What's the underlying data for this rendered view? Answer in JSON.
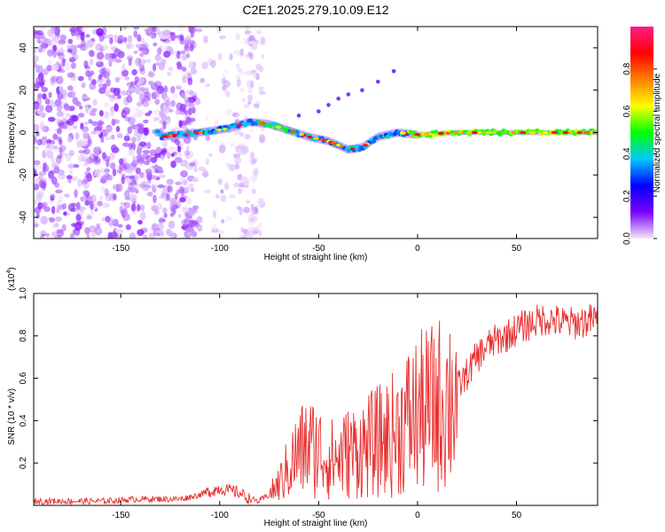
{
  "chart_data": [
    {
      "type": "heatmap",
      "title": "C2E1.2025.279.10.09.E12",
      "xlabel": "Height of straight line (km)",
      "ylabel": "Frequency (Hz)",
      "xlim": [
        -194,
        91
      ],
      "ylim": [
        -50,
        50
      ],
      "xticks": [
        -150,
        -100,
        -50,
        0,
        50
      ],
      "xtick_labels": [
        "-150",
        "-100",
        "-50",
        "0",
        "50"
      ],
      "yticks": [
        -40,
        -20,
        0,
        20,
        40
      ],
      "ytick_labels": [
        "-40",
        "-20",
        "0",
        "20",
        "40"
      ],
      "colorbar": {
        "label": "Normalized spectral amplitude",
        "range": [
          0,
          1
        ],
        "ticks": [
          0.0,
          0.2,
          0.4,
          0.6,
          0.8
        ],
        "tick_labels": [
          "0.0",
          "0.2",
          "0.4",
          "0.6",
          "0.8"
        ],
        "colors": [
          "#f2e6fb",
          "#7a00ff",
          "#0000ff",
          "#00c8ff",
          "#00ff00",
          "#ffff00",
          "#ff8000",
          "#ff0000",
          "#ff1a8c"
        ]
      },
      "noise_region": {
        "x_range": [
          -194,
          -78
        ],
        "weak_band_x": [
          -92,
          -78
        ]
      },
      "ridge": [
        {
          "x": -130,
          "y": -2
        },
        {
          "x": -110,
          "y": 0
        },
        {
          "x": -95,
          "y": 2
        },
        {
          "x": -85,
          "y": 5
        },
        {
          "x": -75,
          "y": 4
        },
        {
          "x": -65,
          "y": 1
        },
        {
          "x": -55,
          "y": -2
        },
        {
          "x": -45,
          "y": -4
        },
        {
          "x": -35,
          "y": -8
        },
        {
          "x": -28,
          "y": -7
        },
        {
          "x": -20,
          "y": -2
        },
        {
          "x": -10,
          "y": 0
        },
        {
          "x": 0,
          "y": -1
        },
        {
          "x": 20,
          "y": 0
        },
        {
          "x": 50,
          "y": 0
        },
        {
          "x": 90,
          "y": 0
        }
      ],
      "harmonic_points": [
        {
          "x": -60,
          "y": 8
        },
        {
          "x": -50,
          "y": 10
        },
        {
          "x": -45,
          "y": 13
        },
        {
          "x": -40,
          "y": 16
        },
        {
          "x": -35,
          "y": 18
        },
        {
          "x": -28,
          "y": 20
        },
        {
          "x": -20,
          "y": 24
        },
        {
          "x": -12,
          "y": 29
        }
      ]
    },
    {
      "type": "line",
      "xlabel": "Height of straight line (km)",
      "ylabel": "SNR (10 * v/v)",
      "y_scale_label": "(x10",
      "y_scale_exp": "4",
      "y_scale_close": ")",
      "xlim": [
        -194,
        91
      ],
      "ylim": [
        0,
        1.0
      ],
      "xticks": [
        -150,
        -100,
        -50,
        0,
        50
      ],
      "xtick_labels": [
        "-150",
        "-100",
        "-50",
        "0",
        "50"
      ],
      "yticks": [
        0.2,
        0.4,
        0.6,
        0.8,
        1.0
      ],
      "ytick_labels": [
        "0.2",
        "0.4",
        "0.6",
        "0.8",
        "1.0"
      ],
      "series": [
        {
          "name": "SNR",
          "color": "#e8302f",
          "x": [
            -194,
            -180,
            -160,
            -140,
            -120,
            -110,
            -100,
            -95,
            -90,
            -85,
            -80,
            -75,
            -70,
            -65,
            -60,
            -55,
            -50,
            -45,
            -40,
            -35,
            -30,
            -25,
            -20,
            -15,
            -10,
            -5,
            0,
            5,
            10,
            15,
            20,
            25,
            30,
            35,
            40,
            45,
            50,
            55,
            60,
            65,
            70,
            75,
            80,
            85,
            91
          ],
          "y": [
            0.02,
            0.02,
            0.02,
            0.03,
            0.03,
            0.05,
            0.08,
            0.07,
            0.06,
            0.03,
            0.02,
            0.05,
            0.1,
            0.18,
            0.25,
            0.28,
            0.26,
            0.22,
            0.22,
            0.25,
            0.26,
            0.28,
            0.3,
            0.32,
            0.35,
            0.4,
            0.43,
            0.45,
            0.47,
            0.5,
            0.55,
            0.62,
            0.7,
            0.75,
            0.78,
            0.8,
            0.83,
            0.85,
            0.87,
            0.88,
            0.87,
            0.86,
            0.86,
            0.87,
            0.88
          ]
        }
      ]
    }
  ]
}
